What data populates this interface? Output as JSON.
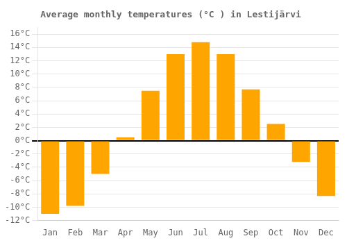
{
  "chart_data": {
    "type": "bar",
    "title": "Average monthly temperatures (°C ) in Lestijärvi",
    "categories": [
      "Jan",
      "Feb",
      "Mar",
      "Apr",
      "May",
      "Jun",
      "Jul",
      "Aug",
      "Sep",
      "Oct",
      "Nov",
      "Dec"
    ],
    "values": [
      -11.0,
      -9.8,
      -5.0,
      0.5,
      7.5,
      13.0,
      14.8,
      13.0,
      7.7,
      2.5,
      -3.2,
      -8.3
    ],
    "color": "#FFA500",
    "ylim": [
      -12,
      17
    ],
    "yticks": [
      {
        "value": -12,
        "label": "-12°C"
      },
      {
        "value": -10,
        "label": "-10°C"
      },
      {
        "value": -8,
        "label": "-8°C"
      },
      {
        "value": -6,
        "label": "-6°C"
      },
      {
        "value": -4,
        "label": "-4°C"
      },
      {
        "value": -2,
        "label": "-2°C"
      },
      {
        "value": 0,
        "label": "0°C"
      },
      {
        "value": 2,
        "label": "2°C"
      },
      {
        "value": 4,
        "label": "4°C"
      },
      {
        "value": 6,
        "label": "6°C"
      },
      {
        "value": 8,
        "label": "8°C"
      },
      {
        "value": 10,
        "label": "10°C"
      },
      {
        "value": 12,
        "label": "12°C"
      },
      {
        "value": 14,
        "label": "14°C"
      },
      {
        "value": 16,
        "label": "16°C"
      }
    ],
    "grid": true
  }
}
